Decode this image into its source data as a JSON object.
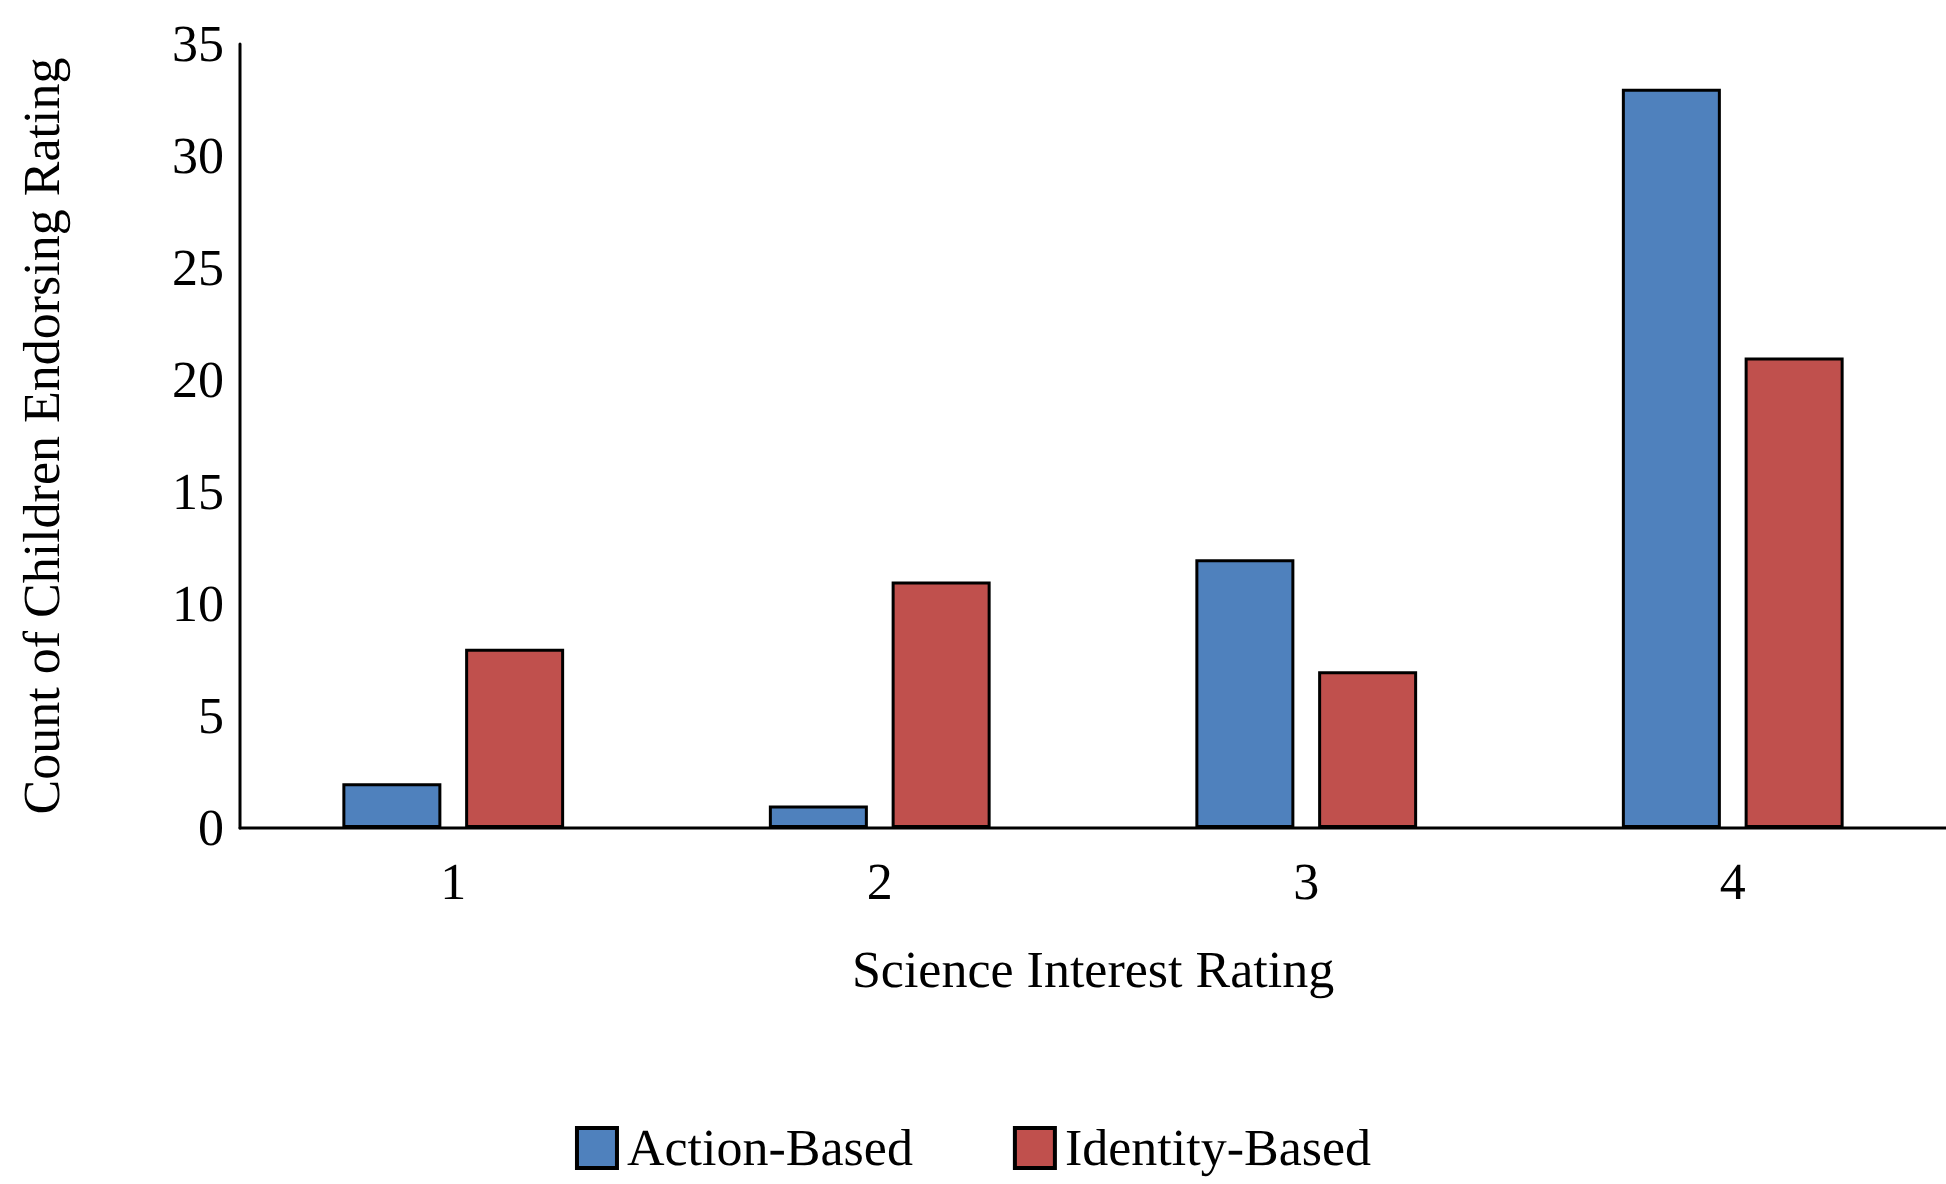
{
  "chart_data": {
    "type": "bar",
    "xlabel": "Science Interest Rating",
    "ylabel": "Count of Children Endorsing Rating",
    "categories": [
      "1",
      "2",
      "3",
      "4"
    ],
    "series": [
      {
        "name": "Action-Based",
        "color": "#4f81bd",
        "values": [
          2,
          1,
          12,
          33
        ]
      },
      {
        "name": "Identity-Based",
        "color": "#c0504d",
        "values": [
          8,
          11,
          7,
          21
        ]
      }
    ],
    "ylim": [
      0,
      35
    ],
    "yticks": [
      0,
      5,
      10,
      15,
      20,
      25,
      30,
      35
    ],
    "grid": false,
    "legend": "bottom"
  }
}
